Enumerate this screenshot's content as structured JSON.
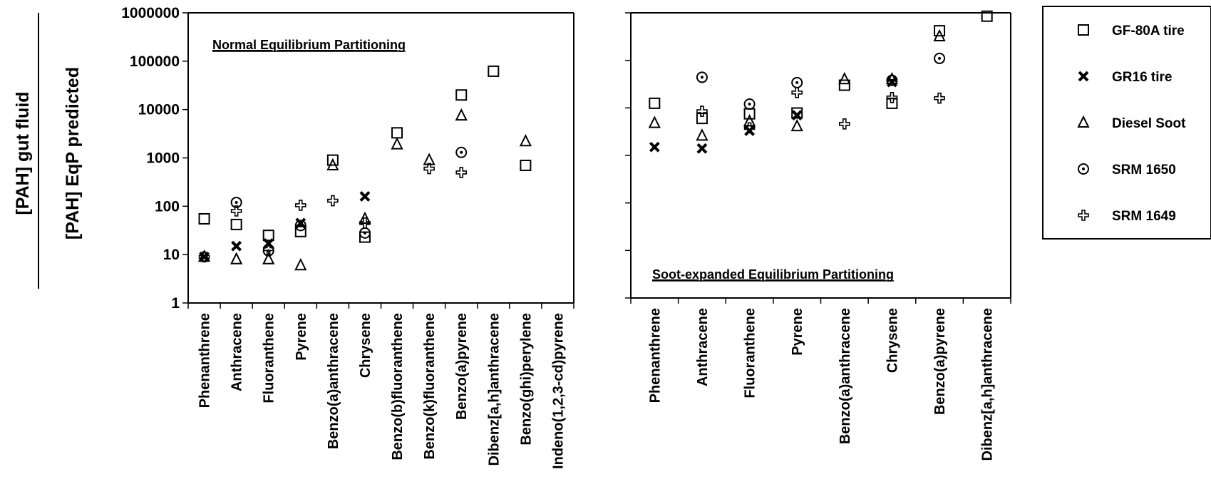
{
  "figure": {
    "ylabel_top": "[PAH] gut fluid",
    "ylabel_bottom": "[PAH] EqP predicted"
  },
  "legend": [
    {
      "marker": "square",
      "label": "GF-80A tire"
    },
    {
      "marker": "x",
      "label": "GR16 tire"
    },
    {
      "marker": "triangle",
      "label": "Diesel Soot"
    },
    {
      "marker": "circle",
      "label": "SRM 1650"
    },
    {
      "marker": "cross",
      "label": "SRM 1649"
    }
  ],
  "chart_data": [
    {
      "type": "scatter",
      "title": "Normal Equilibrium Partitioning",
      "yscale": "log",
      "ylim": [
        1,
        1000000
      ],
      "yticks": [
        "1",
        "10",
        "100",
        "1000",
        "10000",
        "100000",
        "1000000"
      ],
      "categories": [
        "Phenanthrene",
        "Anthracene",
        "Fluoranthene",
        "Pyrene",
        "Benzo(a)anthracene",
        "Chrysene",
        "Benzo(b)fluoranthene",
        "Benzo(k)fluoranthene",
        "Benzo(a)pyrene",
        "Dibenz[a,h]anthracene",
        "Benzo(ghi)perylene",
        "Indeno(1,2,3-cd)pyrene"
      ],
      "series": [
        {
          "name": "GF-80A tire",
          "marker": "square",
          "values": [
            55,
            42,
            25,
            30,
            900,
            23,
            3300,
            null,
            20000,
            62000,
            700,
            null
          ]
        },
        {
          "name": "GR16 tire",
          "marker": "x",
          "values": [
            9,
            15,
            17,
            45,
            null,
            160,
            null,
            null,
            null,
            null,
            null,
            null
          ]
        },
        {
          "name": "Diesel Soot",
          "marker": "triangle",
          "values": [
            9,
            8,
            8,
            6,
            700,
            55,
            1900,
            900,
            7500,
            null,
            2200,
            null
          ]
        },
        {
          "name": "SRM 1650",
          "marker": "circle",
          "values": [
            null,
            120,
            12,
            40,
            null,
            28,
            null,
            null,
            1300,
            null,
            null,
            null
          ]
        },
        {
          "name": "SRM 1649",
          "marker": "cross",
          "values": [
            9,
            80,
            13,
            105,
            130,
            45,
            null,
            600,
            500,
            null,
            null,
            null
          ]
        }
      ]
    },
    {
      "type": "scatter",
      "title": "Soot-expanded Equilibrium Partitioning",
      "yscale": "log",
      "ylim": [
        1,
        1000000
      ],
      "yticks": [],
      "categories": [
        "Phenanthrene",
        "Anthracene",
        "Fluoranthene",
        "Pyrene",
        "Benzo(a)anthracene",
        "Chrysene",
        "Benzo(a)pyrene",
        "Dibenz[a,h]anthracene"
      ],
      "series": [
        {
          "name": "GF-80A tire",
          "marker": "square",
          "values": [
            12500,
            6000,
            7500,
            7800,
            30000,
            12500,
            420000,
            850000
          ]
        },
        {
          "name": "GR16 tire",
          "marker": "x",
          "values": [
            1500,
            1400,
            3300,
            7000,
            null,
            35000,
            null,
            null
          ]
        },
        {
          "name": "Diesel Soot",
          "marker": "triangle",
          "values": [
            4800,
            2600,
            5200,
            4100,
            40000,
            40000,
            320000,
            null
          ]
        },
        {
          "name": "SRM 1650",
          "marker": "circle",
          "values": [
            null,
            44000,
            12000,
            34000,
            null,
            38000,
            110000,
            null
          ]
        },
        {
          "name": "SRM 1649",
          "marker": "cross",
          "values": [
            null,
            8500,
            3800,
            21000,
            4600,
            16500,
            16000,
            null
          ]
        }
      ]
    }
  ]
}
